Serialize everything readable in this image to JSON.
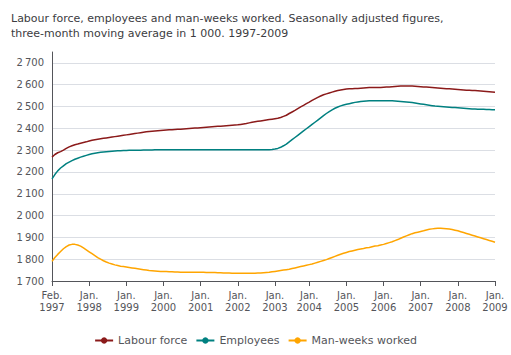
{
  "chart_data": {
    "type": "line",
    "title": "Labour force, employees and man-weeks worked. Seasonally adjusted figures,\nthree-month moving average in 1 000. 1997-2009",
    "categories": [
      "Feb.\n1997",
      null,
      null,
      null,
      null,
      null,
      null,
      null,
      null,
      null,
      null,
      null,
      null,
      "Jan.\n1998",
      null,
      null,
      null,
      null,
      null,
      null,
      null,
      null,
      null,
      null,
      null,
      null,
      "Jan.\n1999",
      null,
      null,
      null,
      null,
      null,
      null,
      null,
      null,
      null,
      null,
      null,
      null,
      "Jan.\n2000",
      null,
      null,
      null,
      null,
      null,
      null,
      null,
      null,
      null,
      null,
      null,
      null,
      "Jan.\n2001",
      null,
      null,
      null,
      null,
      null,
      null,
      null,
      null,
      null,
      null,
      null,
      null,
      "Jan.\n2002",
      null,
      null,
      null,
      null,
      null,
      null,
      null,
      null,
      null,
      null,
      null,
      null,
      "Jan.\n2003",
      null,
      null,
      null,
      null,
      null,
      null,
      null,
      null,
      null,
      null,
      null,
      "Jan.\n2004",
      null,
      null,
      null,
      null,
      null,
      null,
      null,
      null,
      null,
      null,
      null,
      null,
      "Jan.\n2005",
      null,
      null,
      null,
      null,
      null,
      null,
      null,
      null,
      null,
      null,
      null,
      null,
      "Jan.\n2006",
      null,
      null,
      null,
      null,
      null,
      null,
      null,
      null,
      null,
      null,
      null,
      null,
      "Jan.\n2007",
      null,
      null,
      null,
      null,
      null,
      null,
      null,
      null,
      null,
      null,
      null,
      null,
      "Jan.\n2008",
      null,
      null,
      null,
      null,
      null,
      null,
      null,
      null,
      null,
      null,
      null,
      null,
      "Jan.\n2009"
    ],
    "series": [
      {
        "name": "Labour force",
        "color": "#8B1A1A",
        "values": [
          2268,
          2280,
          2288,
          2293,
          2300,
          2308,
          2315,
          2320,
          2325,
          2328,
          2332,
          2335,
          2338,
          2342,
          2345,
          2348,
          2350,
          2352,
          2354,
          2356,
          2358,
          2360,
          2362,
          2364,
          2366,
          2368,
          2370,
          2372,
          2374,
          2376,
          2378,
          2380,
          2382,
          2384,
          2386,
          2387,
          2388,
          2389,
          2390,
          2391,
          2392,
          2393,
          2394,
          2395,
          2396,
          2396,
          2397,
          2398,
          2399,
          2400,
          2401,
          2402,
          2403,
          2404,
          2405,
          2406,
          2407,
          2408,
          2409,
          2410,
          2411,
          2412,
          2413,
          2414,
          2415,
          2416,
          2418,
          2420,
          2422,
          2425,
          2428,
          2430,
          2432,
          2434,
          2436,
          2438,
          2440,
          2442,
          2444,
          2446,
          2450,
          2455,
          2460,
          2468,
          2475,
          2482,
          2490,
          2498,
          2505,
          2513,
          2520,
          2528,
          2535,
          2542,
          2548,
          2554,
          2558,
          2562,
          2566,
          2570,
          2573,
          2576,
          2578,
          2580,
          2581,
          2582,
          2583,
          2583,
          2584,
          2585,
          2586,
          2587,
          2587,
          2587,
          2587,
          2587,
          2588,
          2589,
          2590,
          2591,
          2592,
          2593,
          2594,
          2594,
          2594,
          2594,
          2594,
          2593,
          2592,
          2591,
          2590,
          2589,
          2588,
          2587,
          2586,
          2585,
          2584,
          2583,
          2582,
          2581,
          2580,
          2579,
          2578,
          2577,
          2576,
          2575,
          2575,
          2574,
          2573,
          2572,
          2571,
          2570,
          2569,
          2568,
          2567,
          2566
        ]
      },
      {
        "name": "Employees",
        "color": "#008080",
        "values": [
          2168,
          2188,
          2205,
          2218,
          2228,
          2238,
          2245,
          2252,
          2258,
          2263,
          2268,
          2272,
          2276,
          2280,
          2283,
          2286,
          2288,
          2290,
          2292,
          2293,
          2294,
          2295,
          2296,
          2297,
          2297,
          2298,
          2298,
          2299,
          2299,
          2300,
          2300,
          2300,
          2301,
          2301,
          2301,
          2301,
          2302,
          2302,
          2302,
          2302,
          2302,
          2302,
          2302,
          2302,
          2302,
          2302,
          2302,
          2302,
          2302,
          2302,
          2302,
          2302,
          2302,
          2302,
          2302,
          2302,
          2302,
          2302,
          2302,
          2302,
          2302,
          2302,
          2302,
          2302,
          2302,
          2302,
          2302,
          2302,
          2302,
          2302,
          2302,
          2302,
          2302,
          2302,
          2302,
          2302,
          2302,
          2303,
          2305,
          2308,
          2313,
          2320,
          2328,
          2338,
          2348,
          2358,
          2368,
          2378,
          2388,
          2398,
          2408,
          2418,
          2428,
          2438,
          2448,
          2458,
          2468,
          2477,
          2485,
          2492,
          2498,
          2503,
          2507,
          2510,
          2513,
          2516,
          2519,
          2521,
          2523,
          2524,
          2525,
          2526,
          2527,
          2527,
          2527,
          2527,
          2527,
          2527,
          2527,
          2526,
          2525,
          2524,
          2523,
          2522,
          2521,
          2520,
          2518,
          2516,
          2514,
          2512,
          2510,
          2508,
          2506,
          2504,
          2502,
          2501,
          2500,
          2499,
          2498,
          2497,
          2496,
          2495,
          2494,
          2493,
          2492,
          2491,
          2490,
          2489,
          2489,
          2488,
          2487,
          2487,
          2486,
          2486,
          2485,
          2485
        ]
      },
      {
        "name": "Man-weeks worked",
        "color": "#FFA500",
        "values": [
          1790,
          1808,
          1822,
          1835,
          1848,
          1858,
          1865,
          1868,
          1868,
          1865,
          1860,
          1852,
          1843,
          1834,
          1825,
          1816,
          1807,
          1800,
          1793,
          1787,
          1782,
          1778,
          1774,
          1771,
          1768,
          1766,
          1764,
          1762,
          1760,
          1758,
          1756,
          1754,
          1752,
          1750,
          1748,
          1747,
          1746,
          1745,
          1744,
          1743,
          1743,
          1742,
          1742,
          1741,
          1741,
          1740,
          1740,
          1740,
          1740,
          1740,
          1740,
          1740,
          1740,
          1740,
          1739,
          1739,
          1739,
          1739,
          1738,
          1738,
          1737,
          1737,
          1737,
          1736,
          1736,
          1735,
          1735,
          1735,
          1735,
          1735,
          1736,
          1736,
          1737,
          1737,
          1738,
          1739,
          1740,
          1742,
          1744,
          1746,
          1748,
          1750,
          1752,
          1754,
          1757,
          1760,
          1763,
          1766,
          1769,
          1772,
          1775,
          1778,
          1782,
          1786,
          1790,
          1794,
          1798,
          1803,
          1808,
          1813,
          1818,
          1823,
          1827,
          1831,
          1835,
          1838,
          1841,
          1844,
          1847,
          1849,
          1852,
          1854,
          1857,
          1860,
          1862,
          1865,
          1868,
          1872,
          1876,
          1880,
          1885,
          1890,
          1896,
          1902,
          1907,
          1912,
          1917,
          1921,
          1924,
          1927,
          1930,
          1934,
          1937,
          1939,
          1941,
          1942,
          1942,
          1941,
          1940,
          1938,
          1936,
          1933,
          1930,
          1926,
          1922,
          1918,
          1914,
          1910,
          1906,
          1902,
          1898,
          1894,
          1890,
          1886,
          1882,
          1878
        ]
      }
    ],
    "ylim": [
      1700,
      2750
    ],
    "yticks": [
      {
        "value": 1700,
        "label": "1 700"
      },
      {
        "value": 1800,
        "label": "1 800"
      },
      {
        "value": 1900,
        "label": "1 900"
      },
      {
        "value": 2000,
        "label": "2 000"
      },
      {
        "value": 2100,
        "label": "2 100"
      },
      {
        "value": 2200,
        "label": "2 200"
      },
      {
        "value": 2300,
        "label": "2 300"
      },
      {
        "value": 2400,
        "label": "2 400"
      },
      {
        "value": 2500,
        "label": "2 500"
      },
      {
        "value": 2600,
        "label": "2 600"
      },
      {
        "value": 2700,
        "label": "2 700"
      }
    ],
    "grid": true,
    "legend": "bottom"
  }
}
